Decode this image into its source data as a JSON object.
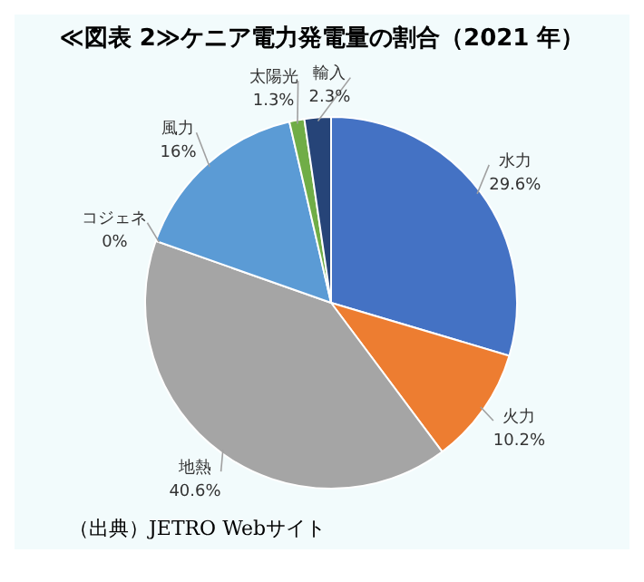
{
  "chart_data": {
    "type": "pie",
    "title": "≪図表 2≫ケニア電力発電量の割合（2021 年）",
    "categories": [
      "水力",
      "火力",
      "地熱",
      "コジェネ",
      "風力",
      "太陽光",
      "輸入"
    ],
    "values": [
      29.6,
      10.2,
      40.6,
      0,
      16,
      1.3,
      2.3
    ],
    "colors": [
      "#4472c4",
      "#ed7d31",
      "#a5a5a5",
      "#ffc000",
      "#5b9bd5",
      "#70ad47",
      "#264478"
    ],
    "value_labels": [
      "29.6%",
      "10.2%",
      "40.6%",
      "0%",
      "16%",
      "1.3%",
      "2.3%"
    ],
    "legend": false,
    "annotations": [
      "（出典）JETRO Webサイト"
    ]
  }
}
